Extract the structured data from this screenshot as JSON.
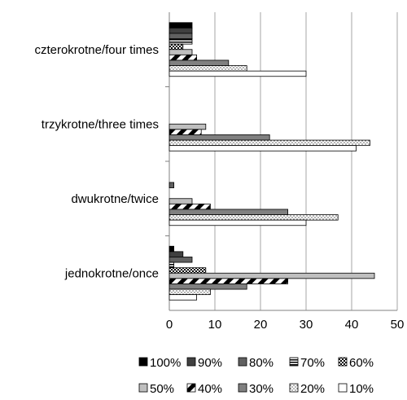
{
  "chart_data": {
    "type": "bar",
    "orientation": "horizontal",
    "categories": [
      "czterokrotne/four times",
      "trzykrotne/three times",
      "dwukrotne/twice",
      "jednokrotne/once"
    ],
    "xlim": [
      0,
      50
    ],
    "x_ticks": [
      "0",
      "10",
      "20",
      "30",
      "40",
      "50"
    ],
    "grid": true,
    "legend_position": "bottom",
    "series": [
      {
        "name": "100%",
        "pattern": "solid-black",
        "values": [
          5,
          0,
          0,
          1
        ]
      },
      {
        "name": "90%",
        "pattern": "solid-dark-gray",
        "values": [
          5,
          0,
          0,
          3
        ]
      },
      {
        "name": "80%",
        "pattern": "solid-gray",
        "values": [
          5,
          0,
          1,
          5
        ]
      },
      {
        "name": "70%",
        "pattern": "horizontal-lines",
        "values": [
          5,
          0,
          0,
          1
        ]
      },
      {
        "name": "60%",
        "pattern": "checker",
        "values": [
          3,
          0,
          0,
          8
        ]
      },
      {
        "name": "50%",
        "pattern": "solid-light-gray",
        "values": [
          5,
          8,
          5,
          45
        ]
      },
      {
        "name": "40%",
        "pattern": "diagonal-stripes",
        "values": [
          6,
          7,
          9,
          26
        ]
      },
      {
        "name": "30%",
        "pattern": "solid-mid-gray",
        "values": [
          13,
          22,
          26,
          17
        ]
      },
      {
        "name": "20%",
        "pattern": "dotted",
        "values": [
          17,
          44,
          37,
          9
        ]
      },
      {
        "name": "10%",
        "pattern": "white",
        "values": [
          30,
          41,
          30,
          6
        ]
      }
    ]
  },
  "colors": {
    "grid": "#a6a6a6",
    "axis": "#808080",
    "bar_border": "#000000"
  }
}
